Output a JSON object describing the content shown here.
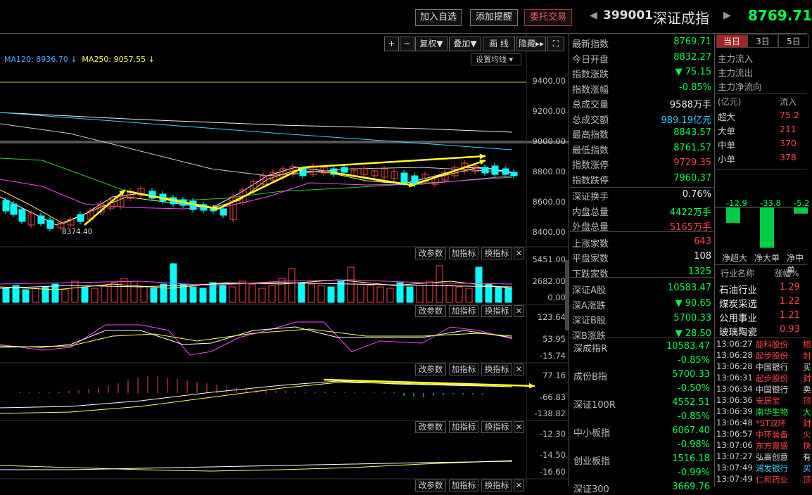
{
  "toolbar": {
    "add_watch": "加入自选",
    "add_alert": "添加提醒",
    "trade": "委托交易"
  },
  "header": {
    "code": "399001",
    "name": "深证成指",
    "price": "8769.71"
  },
  "chart_tools": [
    "+",
    "−",
    "复权▼",
    "叠加▼",
    "画 线",
    "隐藏▸▸",
    "⛶"
  ],
  "ma_legend": {
    "ma120": "MA120: 8936.70",
    "ma250": "MA250: 9057.55"
  },
  "ma_setting": "设置均线",
  "price_axis": [
    "9400.00",
    "9200.00",
    "9000.00",
    "8800.00",
    "8600.00",
    "8400.00"
  ],
  "low_label": "8374.40",
  "vol_axis": [
    "5451.00",
    "2682.00",
    "0.00"
  ],
  "kdj_axis": [
    "123.64",
    "53.95",
    "-15.74"
  ],
  "macd_axis": [
    "77.16",
    "-66.83",
    "-138.82"
  ],
  "p5_axis": [
    "-12.30",
    "-14.50",
    "-16.60"
  ],
  "panel_buttons": {
    "change": "改参数",
    "add": "加指标",
    "swap": "换指标",
    "close": "✕"
  },
  "quote": [
    {
      "k": "最新指数",
      "v": "8769.71",
      "c": "#0f4"
    },
    {
      "k": "今日开盘",
      "v": "8832.27",
      "c": "#0f4"
    },
    {
      "k": "指数涨跌",
      "v": "▼ 75.15",
      "c": "#0f4"
    },
    {
      "k": "指数涨幅",
      "v": "-0.85%",
      "c": "#0f4"
    },
    {
      "k": "总成交量",
      "v": "9588万手",
      "c": "#eee"
    },
    {
      "k": "总成交额",
      "v": "989.19亿元",
      "c": "#3cf"
    },
    {
      "k": "最高指数",
      "v": "8843.57",
      "c": "#0f4"
    },
    {
      "k": "最低指数",
      "v": "8761.57",
      "c": "#0f4"
    },
    {
      "k": "指数涨停",
      "v": "9729.35",
      "c": "#f44"
    },
    {
      "k": "指数跌停",
      "v": "7960.37",
      "c": "#0f4"
    },
    {
      "k": "深证换手",
      "v": "0.76%",
      "c": "#eee"
    },
    {
      "k": "内盘总量",
      "v": "4422万手",
      "c": "#0f4"
    },
    {
      "k": "外盘总量",
      "v": "5165万手",
      "c": "#f44"
    },
    {
      "k": "上涨家数",
      "v": "643",
      "c": "#f44"
    },
    {
      "k": "平盘家数",
      "v": "108",
      "c": "#eee"
    },
    {
      "k": "下跌家数",
      "v": "1325",
      "c": "#0f4"
    },
    {
      "k": "深证A股",
      "v": "10583.47",
      "c": "#0f4"
    },
    {
      "k": "深A涨跌",
      "v": "▼ 90.65",
      "c": "#0f4"
    },
    {
      "k": "深证B股",
      "v": "5700.33",
      "c": "#0f4"
    },
    {
      "k": "深B涨跌",
      "v": "▼ 28.50",
      "c": "#0f4"
    }
  ],
  "related": [
    {
      "name": "深成指R",
      "price": "10583.47",
      "pct": "-0.85%"
    },
    {
      "name": "成份B指",
      "price": "5700.33",
      "pct": "-0.50%"
    },
    {
      "name": "深证100R",
      "price": "4552.51",
      "pct": "-0.85%"
    },
    {
      "name": "中小板指",
      "price": "6067.40",
      "pct": "-0.98%"
    },
    {
      "name": "创业板指",
      "price": "1516.18",
      "pct": "-0.99%"
    },
    {
      "name": "深证300",
      "price": "3669.76",
      "pct": ""
    }
  ],
  "flow_tabs": [
    "当日",
    "3日",
    "5日"
  ],
  "flow_labels": [
    "主力流入",
    "主力流出",
    "主力净流向"
  ],
  "flow_head": {
    "unit": "(亿元)",
    "col": "流入"
  },
  "flow_rows": [
    {
      "k": "超大",
      "v": "75.2"
    },
    {
      "k": "大单",
      "v": "211"
    },
    {
      "k": "中单",
      "v": "370"
    },
    {
      "k": "小单",
      "v": "378"
    }
  ],
  "flow_bars": [
    {
      "label": "净超大",
      "v": "-12.9"
    },
    {
      "label": "净大单",
      "v": "-33.8"
    },
    {
      "label": "净中单",
      "v": "-5.2"
    }
  ],
  "industry_head": {
    "name": "行业名称",
    "pct": "涨幅%"
  },
  "industry": [
    {
      "name": "石油行业",
      "pct": "1.29"
    },
    {
      "name": "煤炭采选",
      "pct": "1.22"
    },
    {
      "name": "公用事业",
      "pct": "1.21"
    },
    {
      "name": "玻璃陶瓷",
      "pct": "0.93"
    }
  ],
  "ticks": [
    {
      "t": "13:06:27",
      "n": "能科股份",
      "x": "相",
      "c": "#f44"
    },
    {
      "t": "13:06:28",
      "n": "起步股份",
      "x": "封",
      "c": "#f44"
    },
    {
      "t": "13:06:28",
      "n": "中国银行",
      "x": "买",
      "c": "#ddd"
    },
    {
      "t": "13:06:31",
      "n": "起步股份",
      "x": "封",
      "c": "#f44"
    },
    {
      "t": "13:06:34",
      "n": "中国银行",
      "x": "卖",
      "c": "#ddd"
    },
    {
      "t": "13:06:36",
      "n": "安居宝",
      "x": "顶",
      "c": "#f44"
    },
    {
      "t": "13:06:39",
      "n": "南华生物",
      "x": "大",
      "c": "#0f4"
    },
    {
      "t": "13:06:48",
      "n": "*ST双环",
      "x": "封",
      "c": "#f44"
    },
    {
      "t": "13:06:57",
      "n": "中环装备",
      "x": "火",
      "c": "#f44"
    },
    {
      "t": "13:07:06",
      "n": "东方嘉盛",
      "x": "快",
      "c": "#f44"
    },
    {
      "t": "13:07:27",
      "n": "弘高创意",
      "x": "有",
      "c": "#ddd"
    },
    {
      "t": "13:07:49",
      "n": "浦发银行",
      "x": "买",
      "c": "#3cf"
    },
    {
      "t": "13:07:49",
      "n": "仁和药业",
      "x": "顶",
      "c": "#f44"
    }
  ]
}
